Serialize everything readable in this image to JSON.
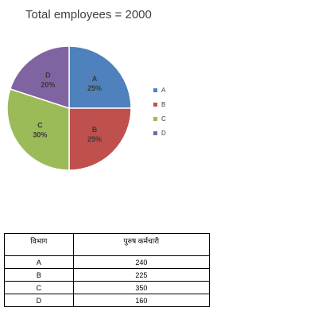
{
  "chart_data": {
    "type": "pie",
    "title": "Total employees = 2000",
    "categories": [
      "A",
      "B",
      "C",
      "D"
    ],
    "values": [
      25,
      25,
      30,
      20
    ],
    "value_labels": [
      "25%",
      "25%",
      "30%",
      "20%"
    ],
    "colors": [
      "#4f81bd",
      "#c0504d",
      "#9bbb59",
      "#8064a2"
    ],
    "legend": {
      "position": "right",
      "entries": [
        "A",
        "B",
        "C",
        "D"
      ]
    }
  },
  "table": {
    "headers": [
      "विभाग",
      "पुरुष कर्मचारी"
    ],
    "rows": [
      [
        "A",
        "240"
      ],
      [
        "B",
        "225"
      ],
      [
        "C",
        "350"
      ],
      [
        "D",
        "160"
      ]
    ]
  }
}
